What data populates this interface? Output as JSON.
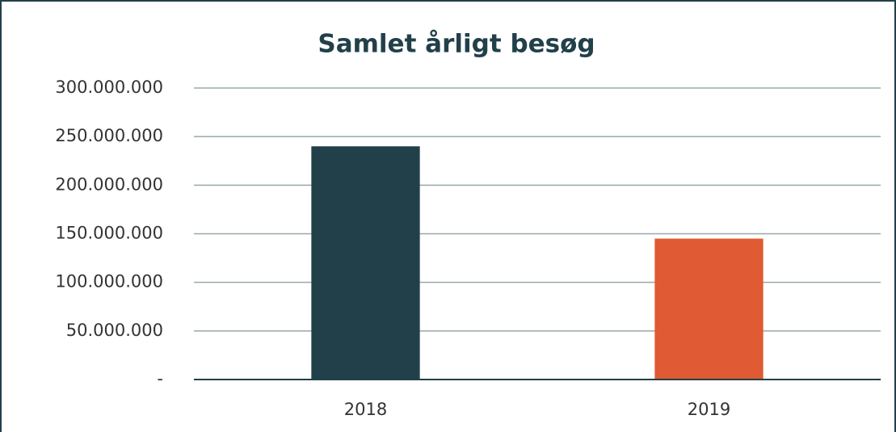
{
  "chart_data": {
    "type": "bar",
    "title": "Samlet årligt besøg",
    "categories": [
      "2018",
      "2019"
    ],
    "values": [
      240000000,
      145000000
    ],
    "colors": [
      "#22404a",
      "#e05a33"
    ],
    "ylim": [
      0,
      300000000
    ],
    "yticks": [
      {
        "value": 0,
        "label": "-"
      },
      {
        "value": 50000000,
        "label": "50.000.000"
      },
      {
        "value": 100000000,
        "label": "100.000.000"
      },
      {
        "value": 150000000,
        "label": "150.000.000"
      },
      {
        "value": 200000000,
        "label": "200.000.000"
      },
      {
        "value": 250000000,
        "label": "250.000.000"
      },
      {
        "value": 300000000,
        "label": "300.000.000"
      }
    ],
    "grid": true
  }
}
